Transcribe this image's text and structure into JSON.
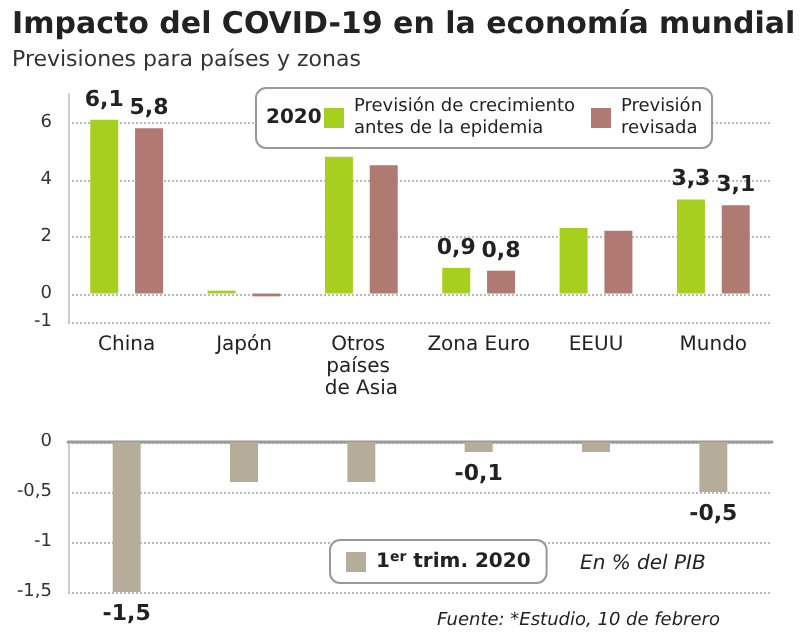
{
  "chart_data": [
    {
      "type": "bar",
      "title": "Impacto del COVID-19 en la economía mundial",
      "subtitle": "Previsiones para países y zonas",
      "legend_title": "2020",
      "categories": [
        "China",
        "Japón",
        "Otros países de Asia",
        "Zona Euro",
        "EEUU",
        "Mundo"
      ],
      "series": [
        {
          "name": "Previsión de crecimiento antes de la epidemia",
          "color": "#a6cf1f",
          "values": [
            6.1,
            0.1,
            4.8,
            0.9,
            2.3,
            3.3
          ],
          "value_labels": [
            "6,1",
            null,
            null,
            "0,9",
            null,
            "3,3"
          ]
        },
        {
          "name": "Previsión revisada",
          "color": "#b07a72",
          "values": [
            5.8,
            -0.1,
            4.5,
            0.8,
            2.2,
            3.1
          ],
          "value_labels": [
            "5,8",
            null,
            null,
            "0,8",
            null,
            "3,1"
          ]
        }
      ],
      "ylim": [
        -1,
        7
      ],
      "yticks": [
        -1,
        0,
        2,
        4,
        6
      ],
      "grid": "y",
      "legend": "top right"
    },
    {
      "type": "bar",
      "categories": [
        "China",
        "Japón",
        "Otros países de Asia",
        "Zona Euro",
        "EEUU",
        "Mundo"
      ],
      "series": [
        {
          "name": "1$^{er}$ trim. 2020",
          "color": "#b5ad99",
          "values": [
            -1.5,
            -0.4,
            -0.4,
            -0.1,
            -0.1,
            -0.5
          ],
          "value_labels": [
            "-1,5",
            null,
            null,
            "-0,1",
            null,
            "-0,5"
          ]
        }
      ],
      "ylim": [
        -1.5,
        0
      ],
      "yticks": [
        0,
        {
          "value": -0.5,
          "label": "-0,5"
        },
        -1,
        {
          "value": -1.5,
          "label": "-1,5"
        }
      ],
      "grid": "y",
      "legend": "bottom",
      "tick_labels": "y",
      "annotations": [
        "En % del PIB",
        "Fuente: *Estudio, 10 de febrero"
      ]
    }
  ]
}
